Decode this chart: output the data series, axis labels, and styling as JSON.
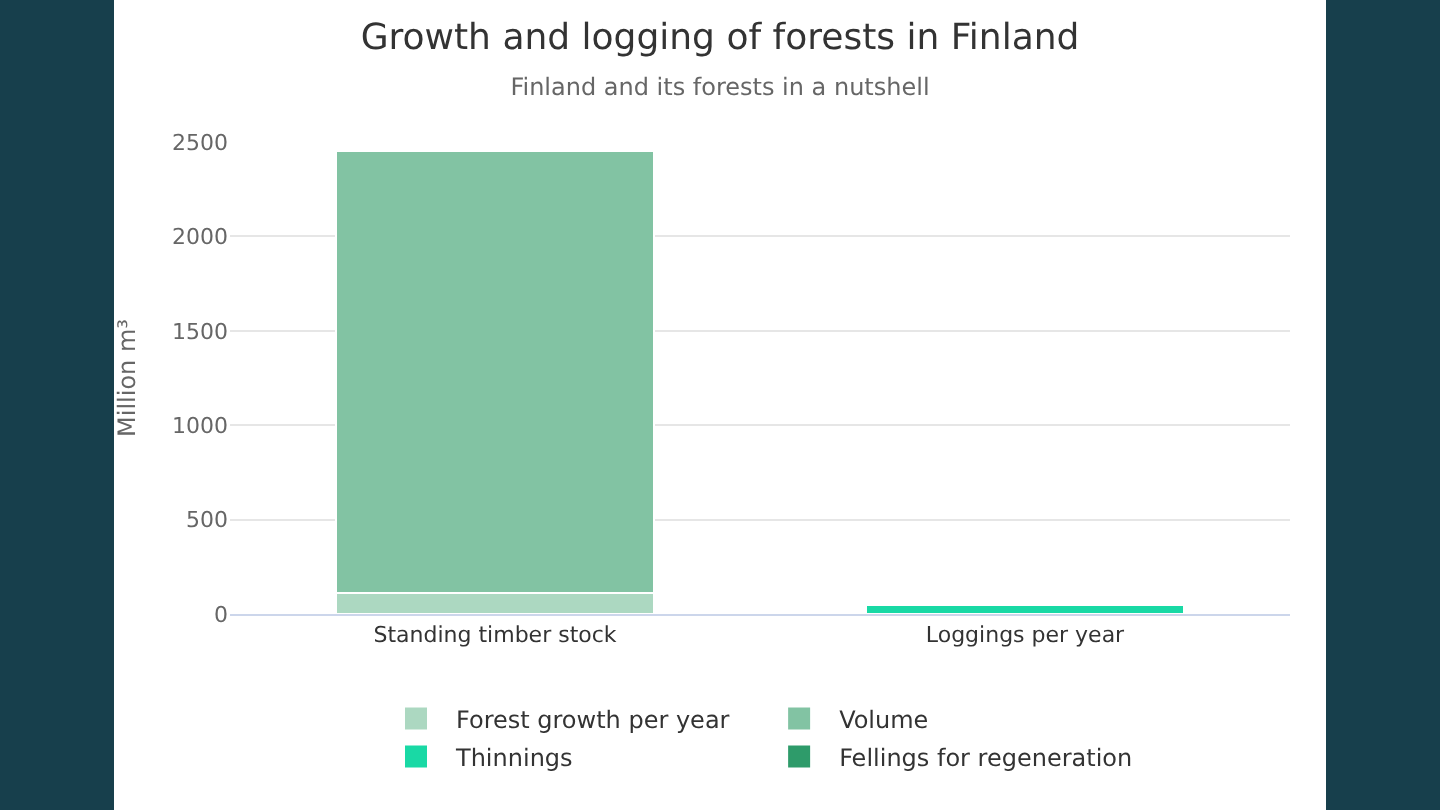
{
  "chart_data": {
    "type": "bar",
    "title": "Growth and logging of forests in Finland",
    "subtitle": "Finland and its forests in a nutshell",
    "ylabel": "Million m³",
    "categories": [
      "Standing timber stock",
      "Loggings per year"
    ],
    "stacked": true,
    "series": [
      {
        "name": "Forest growth per year",
        "color": "#acd8c1",
        "values": [
          110,
          null
        ]
      },
      {
        "name": "Volume",
        "color": "#82c3a3",
        "values": [
          2340,
          null
        ]
      },
      {
        "name": "Thinnings",
        "color": "#19d9a5",
        "values": [
          null,
          50
        ]
      },
      {
        "name": "Fellings for regeneration",
        "color": "#2e9b6a",
        "values": [
          null,
          10
        ]
      }
    ],
    "ylim": [
      0,
      2500
    ],
    "yticks": [
      0,
      500,
      1000,
      1500,
      2000,
      2500
    ],
    "grid": "y",
    "legend": "bottom"
  }
}
